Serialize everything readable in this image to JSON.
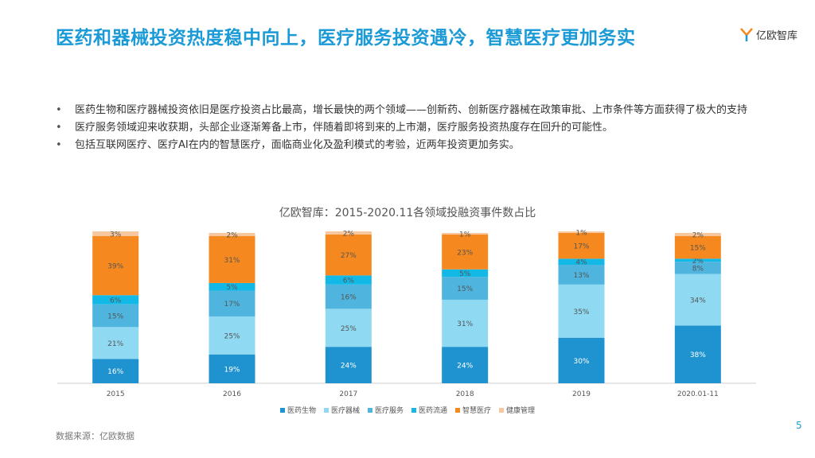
{
  "header": {
    "title": "医药和器械投资热度稳中向上，医疗服务投资遇冷，智慧医疗更加务实"
  },
  "logo": {
    "text": "亿欧智库",
    "icon": "yiou-logo-icon"
  },
  "bullets": [
    "医药生物和医疗器械投资依旧是医疗投资占比最高，增长最快的两个领域——创新药、创新医疗器械在政策审批、上市条件等方面获得了极大的支持",
    "医疗服务领域迎来收获期，头部企业逐渐筹备上市，伴随着即将到来的上市潮，医疗服务投资热度存在回升的可能性。",
    "包括互联网医疗、医疗AI在内的智慧医疗，面临商业化及盈利模式的考验，近两年投资更加务实。"
  ],
  "footer": {
    "source": "数据来源：亿欧数据",
    "page": "5"
  },
  "chart_data": {
    "type": "bar",
    "stacked": true,
    "title": "亿欧智库：2015-2020.11各领域投融资事件数占比",
    "categories": [
      "2015",
      "2016",
      "2017",
      "2018",
      "2019",
      "2020.01-11"
    ],
    "series": [
      {
        "name": "医药生物",
        "color": "#1f93cf",
        "values": [
          16,
          19,
          24,
          24,
          30,
          38
        ],
        "labels": [
          "16%",
          "19%",
          "24%",
          "24%",
          "30%",
          "38%"
        ]
      },
      {
        "name": "医疗器械",
        "color": "#8fdaf2",
        "values": [
          21,
          25,
          25,
          31,
          35,
          34
        ],
        "labels": [
          "21%",
          "25%",
          "25%",
          "31%",
          "35%",
          "34%"
        ]
      },
      {
        "name": "医疗服务",
        "color": "#4fb5de",
        "values": [
          15,
          17,
          16,
          15,
          13,
          8
        ],
        "labels": [
          "15%",
          "17%",
          "16%",
          "15%",
          "13%",
          "8%"
        ]
      },
      {
        "name": "医药流通",
        "color": "#12b9e6",
        "values": [
          6,
          5,
          6,
          5,
          4,
          2
        ],
        "labels": [
          "6%",
          "5%",
          "6%",
          "5%",
          "4%",
          "2%"
        ]
      },
      {
        "name": "智慧医疗",
        "color": "#f5891f",
        "values": [
          39,
          31,
          27,
          23,
          17,
          15
        ],
        "labels": [
          "39%",
          "31%",
          "27%",
          "23%",
          "17%",
          "15%"
        ]
      },
      {
        "name": "健康管理",
        "color": "#f7c8a0",
        "values": [
          3,
          2,
          2,
          1,
          1,
          2
        ],
        "labels": [
          "3%",
          "2%",
          "2%",
          "1%",
          "1%",
          "2%"
        ]
      }
    ],
    "ylim": [
      0,
      100
    ],
    "legend": "bottom"
  }
}
